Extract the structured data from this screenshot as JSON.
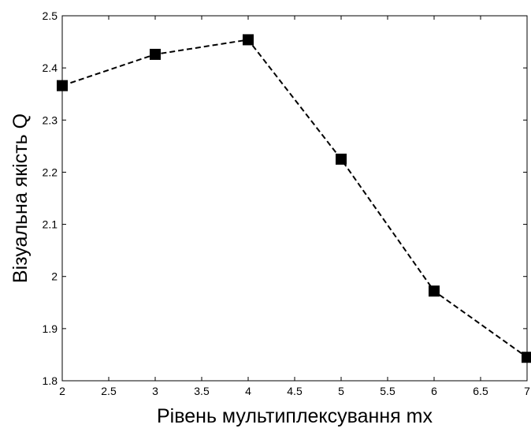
{
  "chart_data": {
    "type": "line",
    "title": "",
    "xlabel": "Рівень мультиплексування mx",
    "ylabel": "Візуальна якість Q",
    "xlim": [
      2,
      7
    ],
    "ylim": [
      1.8,
      2.5
    ],
    "x_ticks": [
      "2",
      "2.5",
      "3",
      "3.5",
      "4",
      "4.5",
      "5",
      "5.5",
      "6",
      "6.5",
      "7"
    ],
    "y_ticks": [
      "1.8",
      "1.9",
      "2",
      "2.1",
      "2.2",
      "2.3",
      "2.4",
      "2.5"
    ],
    "grid": false,
    "series": [
      {
        "x": [
          2,
          3,
          4,
          5,
          6,
          7
        ],
        "values": [
          2.366,
          2.426,
          2.454,
          2.225,
          1.972,
          1.845
        ],
        "line_style": "dashed",
        "marker": "square",
        "color": "#000000"
      }
    ]
  }
}
